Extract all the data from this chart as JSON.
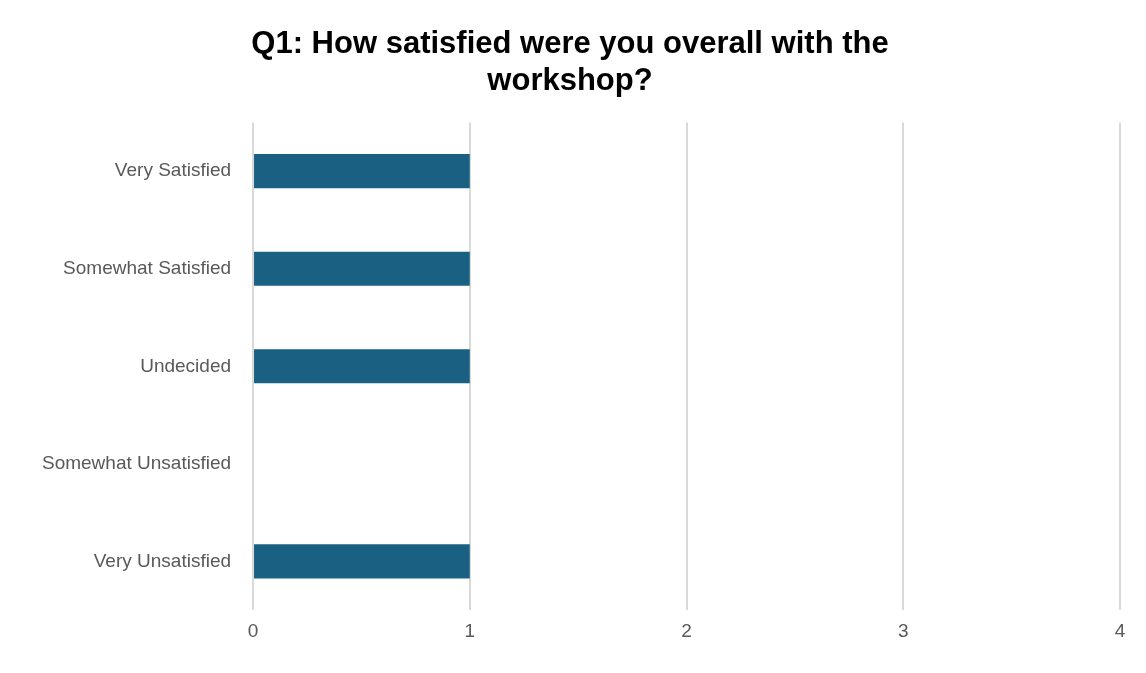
{
  "chart_data": {
    "type": "bar",
    "orientation": "horizontal",
    "title": "Q1: How satisfied were you overall with the workshop?",
    "categories": [
      "Very Satisfied",
      "Somewhat Satisfied",
      "Undecided",
      "Somewhat Unsatisfied",
      "Very Unsatisfied"
    ],
    "values": [
      1,
      1,
      1,
      0,
      1
    ],
    "color": "#1a6082",
    "xlim": [
      0,
      4
    ],
    "xticks": [
      0,
      1,
      2,
      3,
      4
    ],
    "grid": "x",
    "legend": false
  }
}
